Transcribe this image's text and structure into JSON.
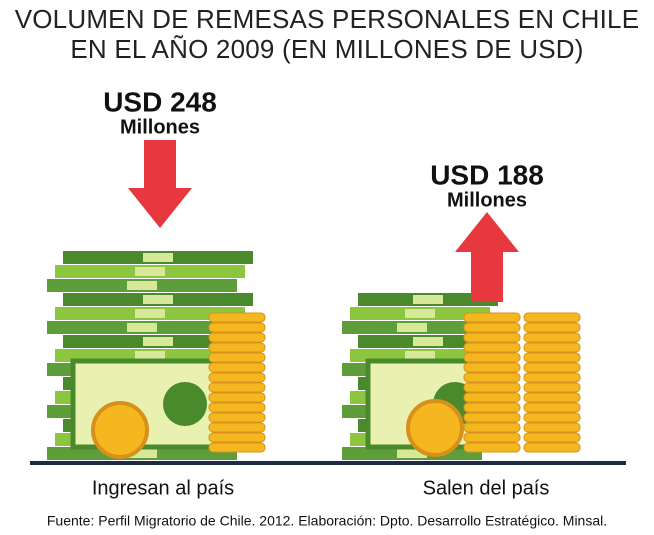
{
  "chart_data": {
    "type": "pictograph",
    "title": "VOLUMEN DE REMESAS PERSONALES EN CHILE EN EL AÑO 2009 (EN MILLONES DE USD)",
    "categories": [
      "Ingresan al país",
      "Salen del país"
    ],
    "values": [
      248,
      188
    ],
    "value_labels": [
      "USD 248",
      "USD 188"
    ],
    "unit_label": "Millones",
    "arrow_color": "#e8383f",
    "bill_colors": [
      "#5e9e3a",
      "#8cc63f",
      "#4a8a2c"
    ],
    "coin_color": "#f5b71f",
    "source": "Fuente: Perfil Migratorio de Chile. 2012. Elaboración: Dpto. Desarrollo Estratégico. Minsal."
  }
}
